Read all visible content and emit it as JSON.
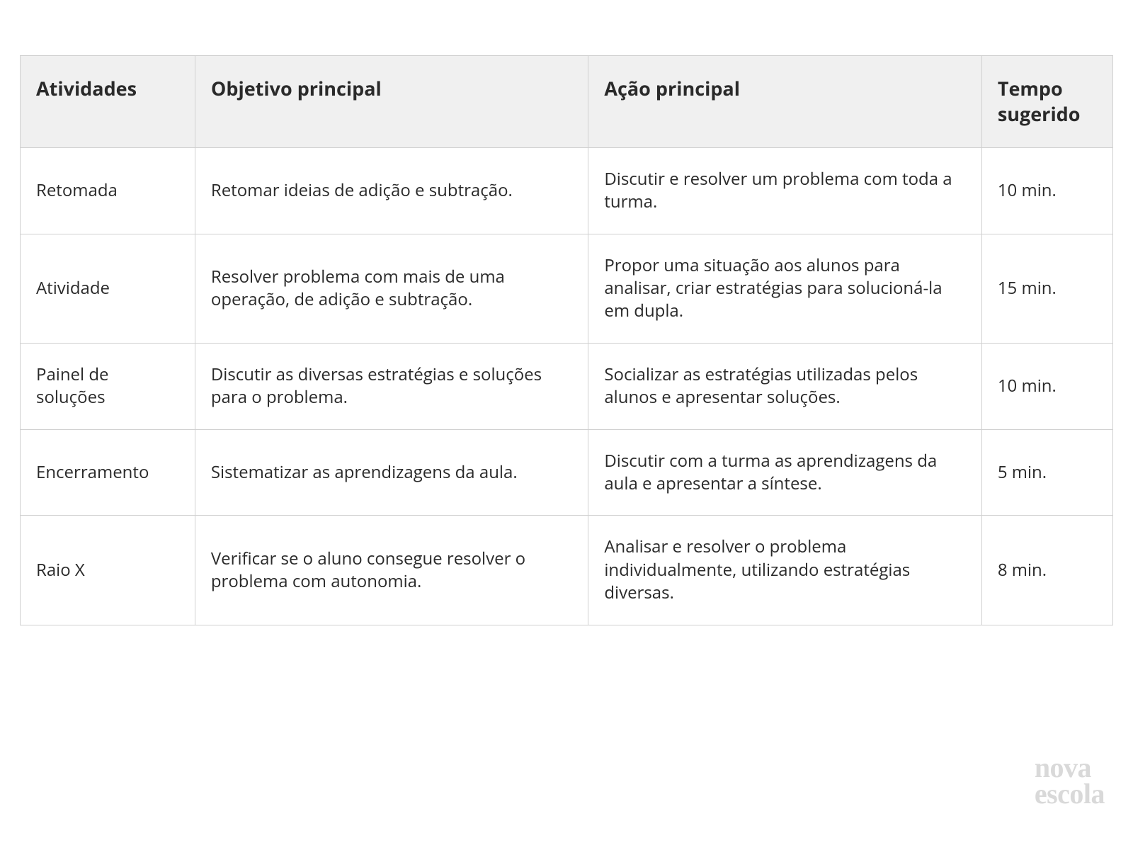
{
  "table": {
    "type": "table",
    "header_bg": "#f0f0f0",
    "border_color": "#d0d0d0",
    "text_color": "#2a2a2a",
    "header_fontsize": 27,
    "cell_fontsize": 24,
    "columns": [
      {
        "key": "atividades",
        "label": "Atividades",
        "width_pct": 16
      },
      {
        "key": "objetivo",
        "label": "Objetivo principal",
        "width_pct": 36
      },
      {
        "key": "acao",
        "label": "Ação principal",
        "width_pct": 36
      },
      {
        "key": "tempo",
        "label": "Tempo sugerido",
        "width_pct": 12
      }
    ],
    "rows": [
      {
        "atividades": "Retomada",
        "objetivo": "Retomar ideias de adição e subtração.",
        "acao": "Discutir e resolver um problema com toda a turma.",
        "tempo": "10 min."
      },
      {
        "atividades": "Atividade",
        "objetivo": "Resolver problema com mais de uma operação, de adição e subtração.",
        "acao": "Propor uma situação aos alunos para analisar, criar estratégias para solucioná-la em dupla.",
        "tempo": "15 min."
      },
      {
        "atividades": "Painel de soluções",
        "objetivo": "Discutir as diversas estratégias e soluções para o problema.",
        "acao": "Socializar as estratégias utilizadas pelos alunos e apresentar soluções.",
        "tempo": "10 min."
      },
      {
        "atividades": "Encerramento",
        "objetivo": "Sistematizar as aprendizagens da aula.",
        "acao": "Discutir com a turma as aprendizagens da aula e apresentar a síntese.",
        "tempo": "5 min."
      },
      {
        "atividades": "Raio X",
        "objetivo": "Verificar se o aluno consegue resolver o problema com autonomia.",
        "acao": "Analisar e resolver o problema individualmente, utilizando estratégias diversas.",
        "tempo": "8  min."
      }
    ]
  },
  "logo": {
    "line1": "nova",
    "line2": "escola",
    "color": "#d9d9d9",
    "fontsize": 40
  }
}
